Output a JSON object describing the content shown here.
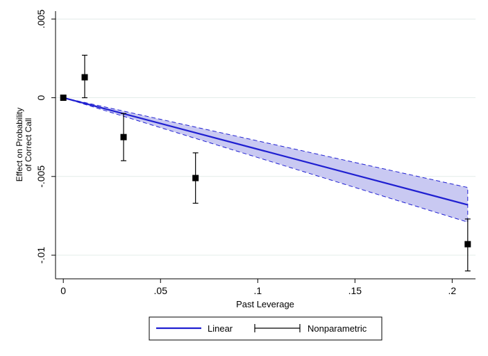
{
  "chart_data": {
    "type": "line",
    "xlabel": "Past Leverage",
    "ylabel": [
      "Effect on Probability",
      "of Correct Call"
    ],
    "xlim": [
      -0.004,
      0.212
    ],
    "ylim": [
      -0.0115,
      0.0055
    ],
    "xticks": [
      0,
      0.05,
      0.1,
      0.15,
      0.2
    ],
    "xtick_labels": [
      "0",
      ".05",
      ".1",
      ".15",
      ".2"
    ],
    "yticks": [
      0.005,
      0,
      -0.005,
      -0.01
    ],
    "ytick_labels": [
      ".005",
      "0",
      "-.005",
      "-.01"
    ],
    "grid": true,
    "legend_position": "bottom",
    "linear": {
      "name": "Linear",
      "color": "#1f1fd1",
      "band_color": "#c9c9f2",
      "x": [
        0,
        0.208
      ],
      "y": [
        0,
        -0.0068
      ],
      "ci_lower": [
        0,
        -0.0079
      ],
      "ci_upper": [
        0,
        -0.0057
      ]
    },
    "nonparametric": {
      "name": "Nonparametric",
      "color": "#000000",
      "points": [
        {
          "x": 0.0,
          "y": 0.0,
          "lo": null,
          "hi": null
        },
        {
          "x": 0.011,
          "y": 0.0013,
          "lo": 0.0,
          "hi": 0.0027
        },
        {
          "x": 0.031,
          "y": -0.0025,
          "lo": -0.004,
          "hi": -0.001
        },
        {
          "x": 0.068,
          "y": -0.0051,
          "lo": -0.0067,
          "hi": -0.0035
        },
        {
          "x": 0.208,
          "y": -0.0093,
          "lo": -0.011,
          "hi": -0.0077
        }
      ]
    }
  }
}
